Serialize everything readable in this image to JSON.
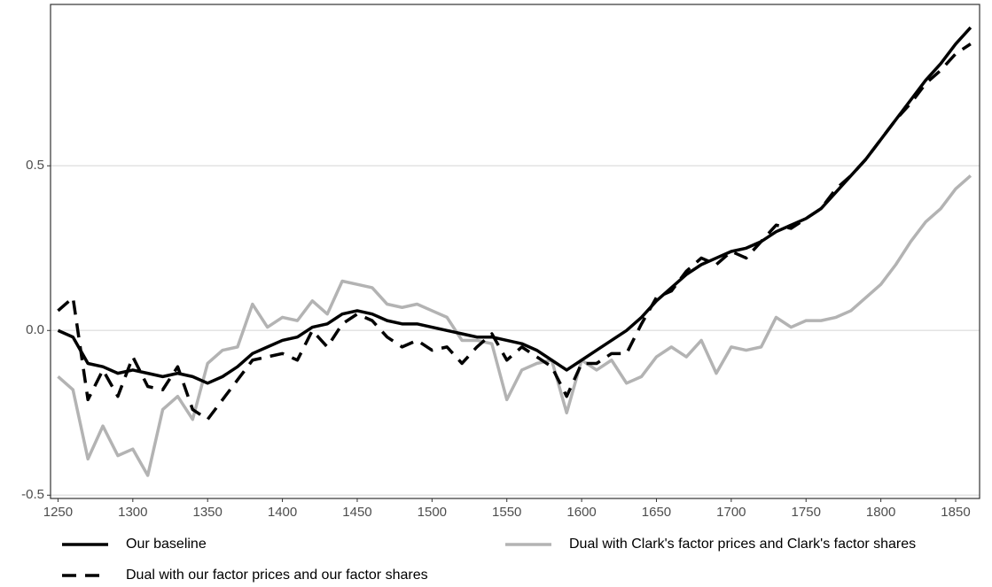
{
  "chart_data": {
    "type": "line",
    "x": [
      1250,
      1260,
      1270,
      1280,
      1290,
      1300,
      1310,
      1320,
      1330,
      1340,
      1350,
      1360,
      1370,
      1380,
      1390,
      1400,
      1410,
      1420,
      1430,
      1440,
      1450,
      1460,
      1470,
      1480,
      1490,
      1500,
      1510,
      1520,
      1530,
      1540,
      1550,
      1560,
      1570,
      1580,
      1590,
      1600,
      1610,
      1620,
      1630,
      1640,
      1650,
      1660,
      1670,
      1680,
      1690,
      1700,
      1710,
      1720,
      1730,
      1740,
      1750,
      1760,
      1770,
      1780,
      1790,
      1800,
      1810,
      1820,
      1830,
      1840,
      1850,
      1860
    ],
    "series": [
      {
        "name": "Our baseline",
        "color": "#000000",
        "linestyle": "solid",
        "values": [
          0.0,
          -0.02,
          -0.1,
          -0.11,
          -0.13,
          -0.12,
          -0.13,
          -0.14,
          -0.13,
          -0.14,
          -0.16,
          -0.14,
          -0.11,
          -0.07,
          -0.05,
          -0.03,
          -0.02,
          0.01,
          0.02,
          0.05,
          0.06,
          0.05,
          0.03,
          0.02,
          0.02,
          0.01,
          0.0,
          -0.01,
          -0.02,
          -0.02,
          -0.03,
          -0.04,
          -0.06,
          -0.09,
          -0.12,
          -0.09,
          -0.06,
          -0.03,
          0.0,
          0.04,
          0.09,
          0.13,
          0.17,
          0.2,
          0.22,
          0.24,
          0.25,
          0.27,
          0.3,
          0.32,
          0.34,
          0.37,
          0.42,
          0.47,
          0.52,
          0.58,
          0.64,
          0.7,
          0.76,
          0.81,
          0.87,
          0.92
        ]
      },
      {
        "name": "Dual with our factor prices and our factor shares",
        "color": "#000000",
        "linestyle": "dashed",
        "values": [
          0.06,
          0.1,
          -0.21,
          -0.12,
          -0.2,
          -0.08,
          -0.17,
          -0.18,
          -0.11,
          -0.24,
          -0.27,
          -0.21,
          -0.15,
          -0.09,
          -0.08,
          -0.07,
          -0.09,
          0.0,
          -0.05,
          0.02,
          0.05,
          0.03,
          -0.02,
          -0.05,
          -0.03,
          -0.06,
          -0.05,
          -0.1,
          -0.05,
          -0.01,
          -0.09,
          -0.05,
          -0.08,
          -0.11,
          -0.2,
          -0.1,
          -0.1,
          -0.07,
          -0.07,
          0.02,
          0.1,
          0.12,
          0.18,
          0.22,
          0.2,
          0.24,
          0.22,
          0.27,
          0.32,
          0.31,
          0.34,
          0.37,
          0.43,
          0.47,
          0.52,
          0.58,
          0.64,
          0.69,
          0.75,
          0.79,
          0.84,
          0.87
        ]
      },
      {
        "name": "Dual with Clark's factor prices and Clark's factor shares",
        "color": "#b3b3b3",
        "linestyle": "solid",
        "values": [
          -0.14,
          -0.18,
          -0.39,
          -0.29,
          -0.38,
          -0.36,
          -0.44,
          -0.24,
          -0.2,
          -0.27,
          -0.1,
          -0.06,
          -0.05,
          0.08,
          0.01,
          0.04,
          0.03,
          0.09,
          0.05,
          0.15,
          0.14,
          0.13,
          0.08,
          0.07,
          0.08,
          0.06,
          0.04,
          -0.03,
          -0.03,
          -0.04,
          -0.21,
          -0.12,
          -0.1,
          -0.09,
          -0.25,
          -0.09,
          -0.12,
          -0.09,
          -0.16,
          -0.14,
          -0.08,
          -0.05,
          -0.08,
          -0.03,
          -0.13,
          -0.05,
          -0.06,
          -0.05,
          0.04,
          0.01,
          0.03,
          0.03,
          0.04,
          0.06,
          0.1,
          0.14,
          0.2,
          0.27,
          0.33,
          0.37,
          0.43,
          0.47
        ]
      }
    ],
    "xlim": [
      1245,
      1866
    ],
    "xticks": [
      1250,
      1300,
      1350,
      1400,
      1450,
      1500,
      1550,
      1600,
      1650,
      1700,
      1750,
      1800,
      1850
    ],
    "ylim": [
      -0.51,
      0.99
    ],
    "yticks": [
      -0.5,
      {
        "value": 0,
        "label": "0.0"
      },
      0.5
    ],
    "grid": true,
    "legend": "bottom"
  }
}
